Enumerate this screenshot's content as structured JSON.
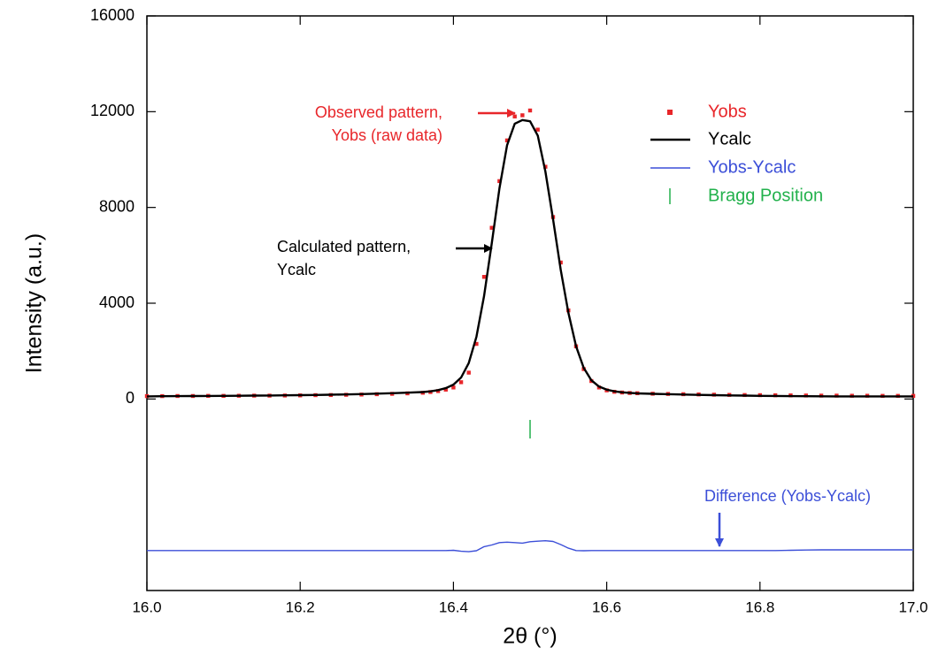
{
  "chart_data": {
    "type": "line",
    "y_label": "Intensity (a.u.)",
    "x_label": "2θ (°)",
    "x": [
      16.0,
      16.02,
      16.04,
      16.06,
      16.08,
      16.1,
      16.12,
      16.14,
      16.16,
      16.18,
      16.2,
      16.22,
      16.24,
      16.26,
      16.28,
      16.3,
      16.32,
      16.34,
      16.36,
      16.37,
      16.38,
      16.39,
      16.4,
      16.41,
      16.42,
      16.43,
      16.44,
      16.45,
      16.46,
      16.47,
      16.48,
      16.49,
      16.5,
      16.51,
      16.52,
      16.53,
      16.54,
      16.55,
      16.56,
      16.57,
      16.58,
      16.59,
      16.6,
      16.61,
      16.62,
      16.63,
      16.64,
      16.66,
      16.68,
      16.7,
      16.72,
      16.74,
      16.76,
      16.78,
      16.8,
      16.82,
      16.84,
      16.86,
      16.88,
      16.9,
      16.92,
      16.94,
      16.96,
      16.98,
      17.0
    ],
    "series": [
      {
        "name": "Yobs",
        "color": "#e8262a",
        "style": "markers",
        "values": [
          120,
          120,
          125,
          125,
          130,
          130,
          135,
          140,
          140,
          145,
          150,
          160,
          165,
          175,
          185,
          200,
          215,
          235,
          260,
          290,
          330,
          390,
          480,
          700,
          1100,
          2300,
          5100,
          7150,
          9100,
          10800,
          11800,
          11850,
          12050,
          11250,
          9700,
          7600,
          5700,
          3700,
          2200,
          1250,
          750,
          480,
          360,
          300,
          270,
          250,
          240,
          220,
          210,
          200,
          190,
          180,
          170,
          165,
          160,
          155,
          150,
          145,
          140,
          140,
          135,
          135,
          130,
          130,
          130
        ]
      },
      {
        "name": "Ycalc",
        "color": "#000000",
        "style": "line",
        "values": [
          110,
          115,
          118,
          122,
          126,
          130,
          135,
          140,
          146,
          152,
          160,
          168,
          178,
          190,
          205,
          222,
          242,
          265,
          290,
          320,
          370,
          450,
          600,
          900,
          1500,
          2600,
          4300,
          6500,
          8800,
          10600,
          11500,
          11650,
          11600,
          11000,
          9500,
          7500,
          5400,
          3600,
          2200,
          1300,
          780,
          520,
          390,
          320,
          280,
          255,
          235,
          215,
          200,
          185,
          170,
          160,
          150,
          140,
          132,
          125,
          120,
          115,
          112,
          110,
          110,
          110,
          110,
          110,
          110
        ]
      },
      {
        "name": "Yobs-Ycalc",
        "color": "#3c4fd8",
        "style": "line",
        "values": [
          -6330,
          -6330,
          -6330,
          -6330,
          -6330,
          -6330,
          -6330,
          -6330,
          -6330,
          -6330,
          -6330,
          -6330,
          -6330,
          -6330,
          -6330,
          -6330,
          -6330,
          -6330,
          -6330,
          -6330,
          -6330,
          -6330,
          -6320,
          -6360,
          -6380,
          -6340,
          -6170,
          -6100,
          -6000,
          -5980,
          -6000,
          -6020,
          -5960,
          -5940,
          -5920,
          -5950,
          -6080,
          -6230,
          -6330,
          -6340,
          -6330,
          -6330,
          -6330,
          -6330,
          -6330,
          -6330,
          -6330,
          -6330,
          -6330,
          -6330,
          -6330,
          -6330,
          -6330,
          -6330,
          -6330,
          -6330,
          -6320,
          -6310,
          -6300,
          -6300,
          -6300,
          -6300,
          -6300,
          -6300,
          -6300
        ]
      }
    ],
    "bragg": {
      "name": "Bragg Position",
      "color": "#22b14c",
      "x": [
        16.5
      ]
    },
    "annotations": [
      {
        "lines": [
          "Observed pattern,",
          "Yobs (raw data)"
        ],
        "color": "#e8262a"
      },
      {
        "lines": [
          "Calculated pattern,",
          "Ycalc"
        ],
        "color": "#000000"
      },
      {
        "lines": [
          "Difference (Yobs-Ycalc)"
        ],
        "color": "#3c4fd8"
      }
    ],
    "xlim": [
      16.0,
      17.0
    ],
    "ylim": [
      -8000,
      16000
    ],
    "xticks": [
      {
        "value": 16.0,
        "label": "16.0"
      },
      16.2,
      16.4,
      16.6,
      16.8,
      {
        "value": 17.0,
        "label": "17.0"
      }
    ],
    "yticks": [
      0,
      4000,
      8000,
      12000,
      16000
    ]
  }
}
